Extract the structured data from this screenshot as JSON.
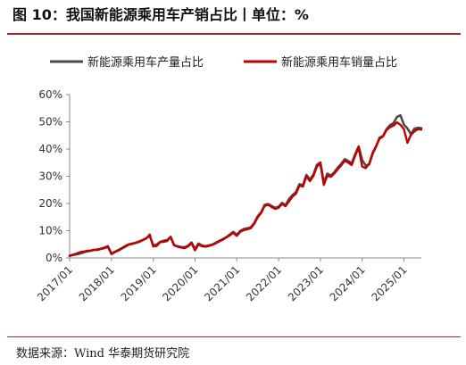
{
  "header": {
    "title": "图 10：我国新能源乘用车产销占比丨单位：%"
  },
  "footer": {
    "source_prefix": "数据来源：",
    "source_text": "Wind 华泰期货研究院"
  },
  "colors": {
    "accent_red": "#b42124",
    "series_production": "#4a4a4a",
    "series_sales": "#c00000"
  },
  "chart_data": {
    "type": "line",
    "title": "",
    "xlabel": "",
    "ylabel": "",
    "x_tick_labels": [
      "2017/01",
      "2018/01",
      "2019/01",
      "2020/01",
      "2021/01",
      "2022/01",
      "2023/01",
      "2024/01",
      "2025/01"
    ],
    "y_tick_labels": [
      "0%",
      "10%",
      "20%",
      "30%",
      "40%",
      "50%",
      "60%"
    ],
    "ylim": [
      0,
      60
    ],
    "xlim": [
      "2017-01",
      "2025-06"
    ],
    "grid": false,
    "legend_position": "top",
    "series": [
      {
        "name": "新能源乘用车产量占比",
        "color": "#4a4a4a",
        "points": [
          [
            "2017-01",
            0.8
          ],
          [
            "2017-02",
            1.1
          ],
          [
            "2017-03",
            1.3
          ],
          [
            "2017-04",
            1.6
          ],
          [
            "2017-05",
            2.0
          ],
          [
            "2017-06",
            2.4
          ],
          [
            "2017-07",
            2.6
          ],
          [
            "2017-08",
            2.9
          ],
          [
            "2017-09",
            3.1
          ],
          [
            "2017-10",
            3.4
          ],
          [
            "2017-11",
            3.8
          ],
          [
            "2017-12",
            4.3
          ],
          [
            "2018-01",
            1.6
          ],
          [
            "2018-02",
            2.3
          ],
          [
            "2018-03",
            2.9
          ],
          [
            "2018-04",
            3.6
          ],
          [
            "2018-05",
            4.4
          ],
          [
            "2018-06",
            5.0
          ],
          [
            "2018-07",
            5.3
          ],
          [
            "2018-08",
            5.5
          ],
          [
            "2018-09",
            5.9
          ],
          [
            "2018-10",
            6.6
          ],
          [
            "2018-11",
            7.3
          ],
          [
            "2018-12",
            8.1
          ],
          [
            "2019-01",
            4.6
          ],
          [
            "2019-02",
            4.9
          ],
          [
            "2019-03",
            5.9
          ],
          [
            "2019-04",
            6.3
          ],
          [
            "2019-05",
            6.6
          ],
          [
            "2019-06",
            7.6
          ],
          [
            "2019-07",
            4.6
          ],
          [
            "2019-08",
            4.3
          ],
          [
            "2019-09",
            4.0
          ],
          [
            "2019-10",
            3.9
          ],
          [
            "2019-11",
            4.5
          ],
          [
            "2019-12",
            5.7
          ],
          [
            "2020-01",
            3.2
          ],
          [
            "2020-02",
            5.3
          ],
          [
            "2020-03",
            4.6
          ],
          [
            "2020-04",
            4.3
          ],
          [
            "2020-05",
            4.6
          ],
          [
            "2020-06",
            4.9
          ],
          [
            "2020-07",
            5.6
          ],
          [
            "2020-08",
            6.3
          ],
          [
            "2020-09",
            6.9
          ],
          [
            "2020-10",
            7.6
          ],
          [
            "2020-11",
            8.6
          ],
          [
            "2020-12",
            9.6
          ],
          [
            "2021-01",
            8.5
          ],
          [
            "2021-02",
            9.9
          ],
          [
            "2021-03",
            10.6
          ],
          [
            "2021-04",
            10.9
          ],
          [
            "2021-05",
            11.2
          ],
          [
            "2021-06",
            12.8
          ],
          [
            "2021-07",
            15.3
          ],
          [
            "2021-08",
            16.8
          ],
          [
            "2021-09",
            19.5
          ],
          [
            "2021-10",
            19.8
          ],
          [
            "2021-11",
            19.1
          ],
          [
            "2021-12",
            18.4
          ],
          [
            "2022-01",
            18.8
          ],
          [
            "2022-02",
            20.2
          ],
          [
            "2022-03",
            19.4
          ],
          [
            "2022-04",
            21.6
          ],
          [
            "2022-05",
            23.1
          ],
          [
            "2022-06",
            24.2
          ],
          [
            "2022-07",
            27.1
          ],
          [
            "2022-08",
            26.7
          ],
          [
            "2022-09",
            30.5
          ],
          [
            "2022-10",
            28.8
          ],
          [
            "2022-11",
            30.6
          ],
          [
            "2022-12",
            34.2
          ],
          [
            "2023-01",
            35.1
          ],
          [
            "2023-02",
            27.6
          ],
          [
            "2023-03",
            31.0
          ],
          [
            "2023-04",
            30.2
          ],
          [
            "2023-05",
            31.5
          ],
          [
            "2023-06",
            33.2
          ],
          [
            "2023-07",
            34.6
          ],
          [
            "2023-08",
            36.3
          ],
          [
            "2023-09",
            35.6
          ],
          [
            "2023-10",
            34.8
          ],
          [
            "2023-11",
            38.1
          ],
          [
            "2023-12",
            41.0
          ],
          [
            "2024-01",
            35.9
          ],
          [
            "2024-02",
            34.0
          ],
          [
            "2024-03",
            34.3
          ],
          [
            "2024-04",
            38.2
          ],
          [
            "2024-05",
            40.9
          ],
          [
            "2024-06",
            44.2
          ],
          [
            "2024-07",
            44.8
          ],
          [
            "2024-08",
            47.3
          ],
          [
            "2024-09",
            48.8
          ],
          [
            "2024-10",
            49.5
          ],
          [
            "2024-11",
            51.8
          ],
          [
            "2024-12",
            52.4
          ],
          [
            "2025-01",
            48.9
          ],
          [
            "2025-02",
            47.6
          ],
          [
            "2025-03",
            45.4
          ],
          [
            "2025-04",
            47.5
          ],
          [
            "2025-05",
            47.8
          ],
          [
            "2025-06",
            47.7
          ]
        ]
      },
      {
        "name": "新能源乘用车销量占比",
        "color": "#c00000",
        "points": [
          [
            "2017-01",
            0.7
          ],
          [
            "2017-02",
            1.2
          ],
          [
            "2017-03",
            1.6
          ],
          [
            "2017-04",
            2.1
          ],
          [
            "2017-05",
            2.3
          ],
          [
            "2017-06",
            2.6
          ],
          [
            "2017-07",
            2.7
          ],
          [
            "2017-08",
            3.0
          ],
          [
            "2017-09",
            2.9
          ],
          [
            "2017-10",
            3.3
          ],
          [
            "2017-11",
            3.6
          ],
          [
            "2017-12",
            4.1
          ],
          [
            "2018-01",
            1.4
          ],
          [
            "2018-02",
            2.1
          ],
          [
            "2018-03",
            2.7
          ],
          [
            "2018-04",
            3.4
          ],
          [
            "2018-05",
            4.1
          ],
          [
            "2018-06",
            4.9
          ],
          [
            "2018-07",
            5.1
          ],
          [
            "2018-08",
            5.6
          ],
          [
            "2018-09",
            6.1
          ],
          [
            "2018-10",
            6.5
          ],
          [
            "2018-11",
            7.1
          ],
          [
            "2018-12",
            8.6
          ],
          [
            "2019-01",
            4.2
          ],
          [
            "2019-02",
            4.4
          ],
          [
            "2019-03",
            5.8
          ],
          [
            "2019-04",
            5.9
          ],
          [
            "2019-05",
            6.2
          ],
          [
            "2019-06",
            7.8
          ],
          [
            "2019-07",
            4.8
          ],
          [
            "2019-08",
            4.1
          ],
          [
            "2019-09",
            3.8
          ],
          [
            "2019-10",
            3.6
          ],
          [
            "2019-11",
            4.2
          ],
          [
            "2019-12",
            5.4
          ],
          [
            "2020-01",
            2.8
          ],
          [
            "2020-02",
            4.9
          ],
          [
            "2020-03",
            4.3
          ],
          [
            "2020-04",
            4.1
          ],
          [
            "2020-05",
            4.4
          ],
          [
            "2020-06",
            4.8
          ],
          [
            "2020-07",
            5.4
          ],
          [
            "2020-08",
            6.1
          ],
          [
            "2020-09",
            6.7
          ],
          [
            "2020-10",
            7.5
          ],
          [
            "2020-11",
            8.3
          ],
          [
            "2020-12",
            9.2
          ],
          [
            "2021-01",
            8.1
          ],
          [
            "2021-02",
            9.6
          ],
          [
            "2021-03",
            10.2
          ],
          [
            "2021-04",
            10.5
          ],
          [
            "2021-05",
            10.9
          ],
          [
            "2021-06",
            12.5
          ],
          [
            "2021-07",
            14.9
          ],
          [
            "2021-08",
            16.5
          ],
          [
            "2021-09",
            19.1
          ],
          [
            "2021-10",
            19.5
          ],
          [
            "2021-11",
            18.7
          ],
          [
            "2021-12",
            18.0
          ],
          [
            "2022-01",
            18.4
          ],
          [
            "2022-02",
            19.8
          ],
          [
            "2022-03",
            19.0
          ],
          [
            "2022-04",
            20.8
          ],
          [
            "2022-05",
            22.5
          ],
          [
            "2022-06",
            23.6
          ],
          [
            "2022-07",
            26.6
          ],
          [
            "2022-08",
            26.2
          ],
          [
            "2022-09",
            30.0
          ],
          [
            "2022-10",
            28.2
          ],
          [
            "2022-11",
            30.1
          ],
          [
            "2022-12",
            33.6
          ],
          [
            "2023-01",
            34.6
          ],
          [
            "2023-02",
            26.8
          ],
          [
            "2023-03",
            30.2
          ],
          [
            "2023-04",
            29.8
          ],
          [
            "2023-05",
            31.0
          ],
          [
            "2023-06",
            32.6
          ],
          [
            "2023-07",
            34.0
          ],
          [
            "2023-08",
            35.7
          ],
          [
            "2023-09",
            35.0
          ],
          [
            "2023-10",
            34.1
          ],
          [
            "2023-11",
            37.6
          ],
          [
            "2023-12",
            40.5
          ],
          [
            "2024-01",
            33.6
          ],
          [
            "2024-02",
            33.0
          ],
          [
            "2024-03",
            34.6
          ],
          [
            "2024-04",
            38.6
          ],
          [
            "2024-05",
            41.1
          ],
          [
            "2024-06",
            43.8
          ],
          [
            "2024-07",
            44.6
          ],
          [
            "2024-08",
            47.0
          ],
          [
            "2024-09",
            48.0
          ],
          [
            "2024-10",
            48.6
          ],
          [
            "2024-11",
            49.8
          ],
          [
            "2024-12",
            48.9
          ],
          [
            "2025-01",
            47.3
          ],
          [
            "2025-02",
            42.3
          ],
          [
            "2025-03",
            45.2
          ],
          [
            "2025-04",
            46.5
          ],
          [
            "2025-05",
            47.3
          ],
          [
            "2025-06",
            47.1
          ]
        ]
      }
    ]
  }
}
